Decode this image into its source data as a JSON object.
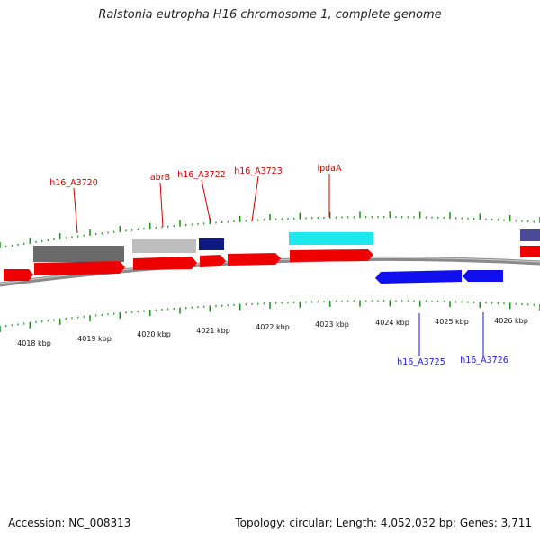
{
  "title": "Ralstonia eutropha H16 chromosome 1, complete genome",
  "footer": {
    "accession": "Accession: NC_008313",
    "summary": "Topology: circular; Length: 4,052,032 bp; Genes: 3,711"
  },
  "axis": {
    "unit": "kbp",
    "ticks": [
      "4018 kbp",
      "4019 kbp",
      "4020 kbp",
      "4021 kbp",
      "4022 kbp",
      "4023 kbp",
      "4024 kbp",
      "4025 kbp",
      "4026 kbp"
    ]
  },
  "colors": {
    "forward_gene": "#ee0000",
    "reverse_gene": "#1010ee",
    "forward_label": "#cc0000",
    "reverse_label": "#1a1acc",
    "tick_mark": "#1a8c1a",
    "backbone": "#8a8a8a",
    "feature_dark_gray": "#6a6a6a",
    "feature_light_gray": "#bdbdbd",
    "feature_navy": "#0f1a80",
    "feature_cyan": "#1ee8ee",
    "feature_slate": "#4a4a99"
  },
  "labels": {
    "forward": [
      "h16_A3720",
      "abrB",
      "h16_A3722",
      "h16_A3723",
      "lpdaA"
    ],
    "reverse": [
      "h16_A3725",
      "h16_A3726"
    ]
  }
}
